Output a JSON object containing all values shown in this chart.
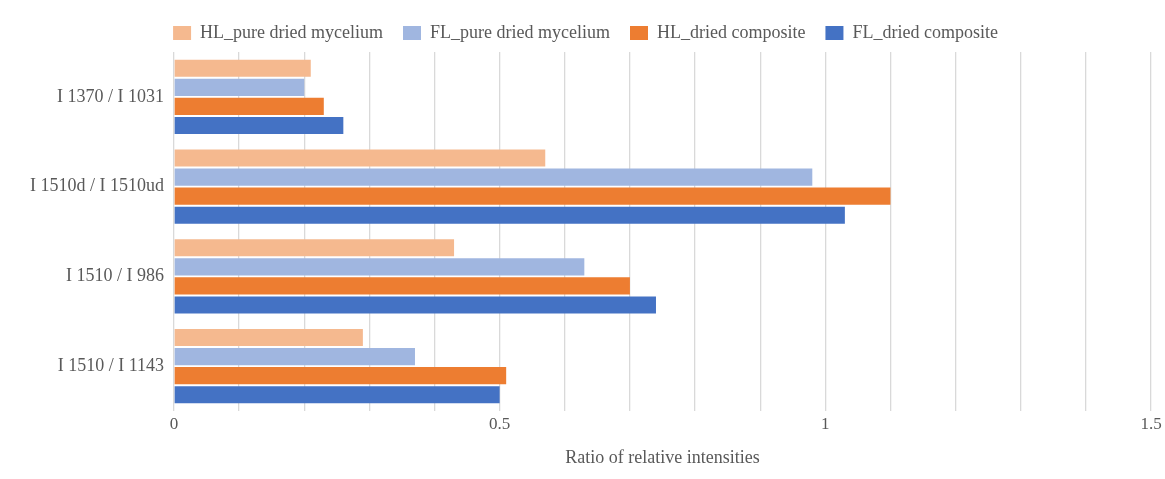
{
  "chart_data": {
    "type": "bar",
    "orientation": "horizontal",
    "xlabel": "Ratio of relative intensities",
    "categories": [
      "I 1370 / I 1031",
      "I 1510d / I 1510ud",
      "I 1510 / I 986",
      "I 1510 / I 1143"
    ],
    "series": [
      {
        "name": "HL_pure dried mycelium",
        "color": "#f5b98f",
        "values": [
          0.21,
          0.57,
          0.43,
          0.29
        ]
      },
      {
        "name": "FL_pure dried mycelium",
        "color": "#a0b6e0",
        "values": [
          0.2,
          0.98,
          0.63,
          0.37
        ]
      },
      {
        "name": "HL_dried composite",
        "color": "#ed7d31",
        "values": [
          0.23,
          1.1,
          0.7,
          0.51
        ]
      },
      {
        "name": "FL_dried composite",
        "color": "#4472c4",
        "values": [
          0.26,
          1.03,
          0.74,
          0.5
        ]
      }
    ],
    "xlim": [
      0,
      1.5
    ],
    "xticks": [
      0,
      {
        "value": 0.1,
        "label": null
      },
      {
        "value": 0.2,
        "label": null
      },
      {
        "value": 0.3,
        "label": null
      },
      {
        "value": 0.4,
        "label": null
      },
      0.5,
      {
        "value": 0.6,
        "label": null
      },
      {
        "value": 0.7,
        "label": null
      },
      {
        "value": 0.8,
        "label": null
      },
      {
        "value": 0.9,
        "label": null
      },
      1,
      {
        "value": 1.1,
        "label": null
      },
      {
        "value": 1.2,
        "label": null
      },
      {
        "value": 1.3,
        "label": null
      },
      {
        "value": 1.4,
        "label": null
      },
      1.5
    ],
    "grid": "x",
    "legend": "top"
  }
}
